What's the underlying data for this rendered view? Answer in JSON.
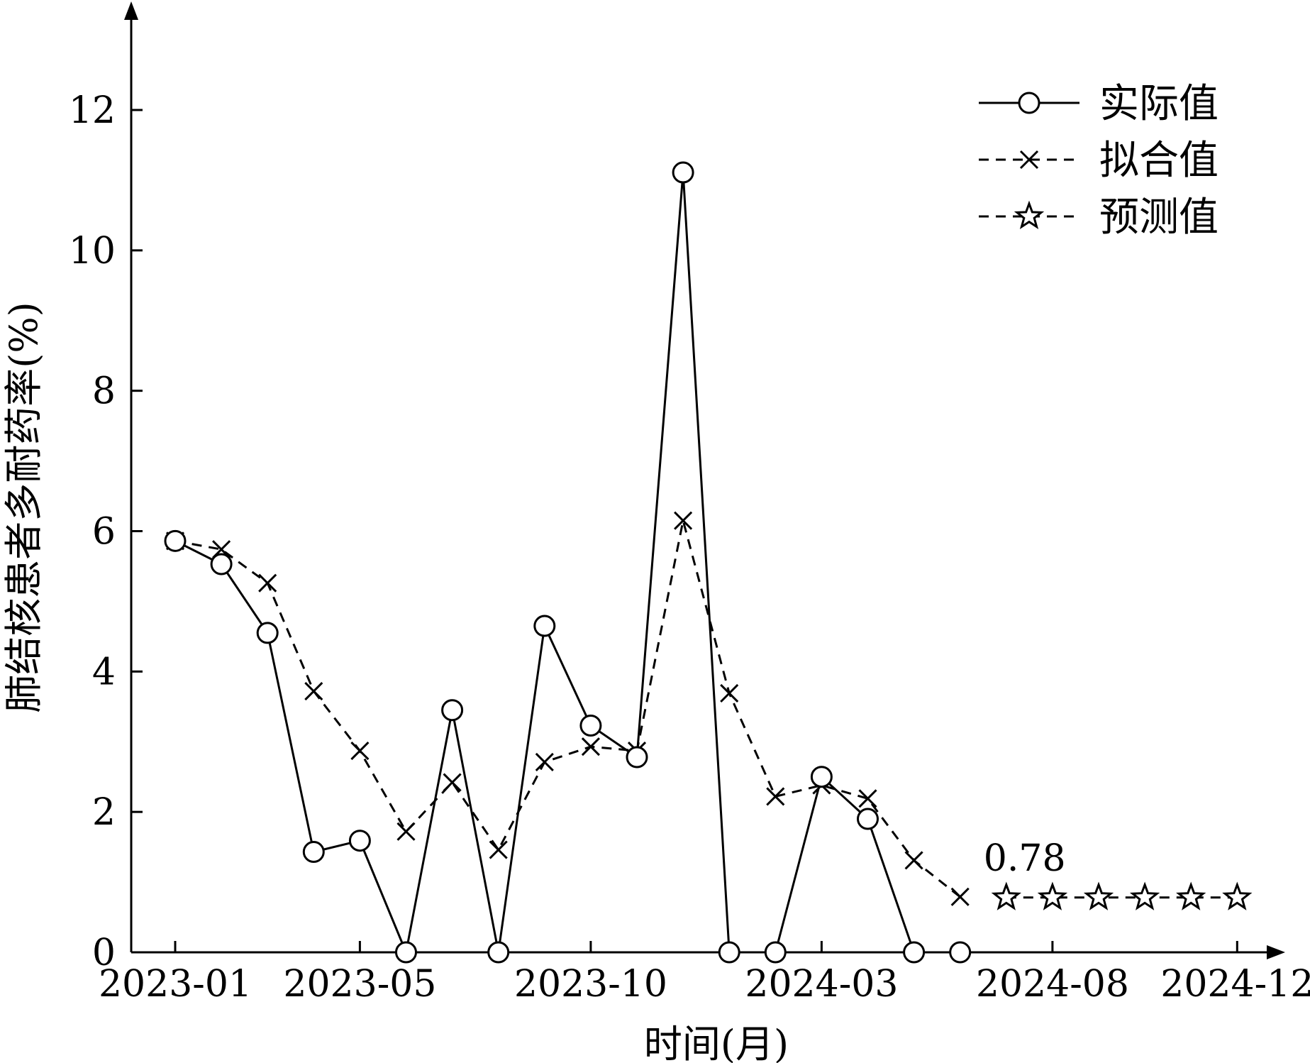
{
  "chart_data": {
    "type": "line",
    "xlabel": "时间(月)",
    "ylabel": "肺结核患者多耐药率(%)",
    "ylim": [
      0,
      12
    ],
    "yticks": [
      0,
      2,
      4,
      6,
      8,
      10,
      12
    ],
    "xtick_labels": [
      "2023-01",
      "2023-05",
      "2023-10",
      "2024-03",
      "2024-08",
      "2024-12"
    ],
    "xtick_months": [
      "2023-01",
      "2023-05",
      "2023-10",
      "2024-03",
      "2024-08",
      "2024-12"
    ],
    "xlim": [
      "2023-01",
      "2024-12"
    ],
    "grid": false,
    "legend": {
      "position": "top-right",
      "entries": [
        {
          "name": "实际值",
          "style": "solid",
          "marker": "circle"
        },
        {
          "name": "拟合值",
          "style": "dashed",
          "marker": "x"
        },
        {
          "name": "预测值",
          "style": "dashed",
          "marker": "star"
        }
      ]
    },
    "series": [
      {
        "name": "实际值",
        "x": [
          "2023-01",
          "2023-02",
          "2023-03",
          "2023-04",
          "2023-05",
          "2023-06",
          "2023-07",
          "2023-08",
          "2023-09",
          "2023-10",
          "2023-11",
          "2023-12",
          "2024-01",
          "2024-02",
          "2024-03",
          "2024-04",
          "2024-05",
          "2024-06"
        ],
        "values": [
          5.86,
          5.53,
          4.55,
          1.43,
          1.59,
          0,
          3.45,
          0,
          4.65,
          3.23,
          2.78,
          11.11,
          0,
          0,
          2.5,
          1.9,
          0,
          0
        ]
      },
      {
        "name": "拟合值",
        "x": [
          "2023-01",
          "2023-02",
          "2023-03",
          "2023-04",
          "2023-05",
          "2023-06",
          "2023-07",
          "2023-08",
          "2023-09",
          "2023-10",
          "2023-11",
          "2023-12",
          "2024-01",
          "2024-02",
          "2024-03",
          "2024-04",
          "2024-05",
          "2024-06"
        ],
        "values": [
          5.86,
          5.74,
          5.26,
          3.72,
          2.87,
          1.72,
          2.42,
          1.46,
          2.71,
          2.93,
          2.87,
          6.15,
          3.69,
          2.22,
          2.38,
          2.19,
          1.31,
          0.79
        ]
      },
      {
        "name": "预测值",
        "x": [
          "2024-07",
          "2024-08",
          "2024-09",
          "2024-10",
          "2024-11",
          "2024-12"
        ],
        "values": [
          0.78,
          0.78,
          0.78,
          0.78,
          0.78,
          0.78
        ]
      }
    ],
    "annotations": [
      {
        "text": "0.78",
        "x": "2024-07",
        "y": 0.78
      }
    ]
  }
}
